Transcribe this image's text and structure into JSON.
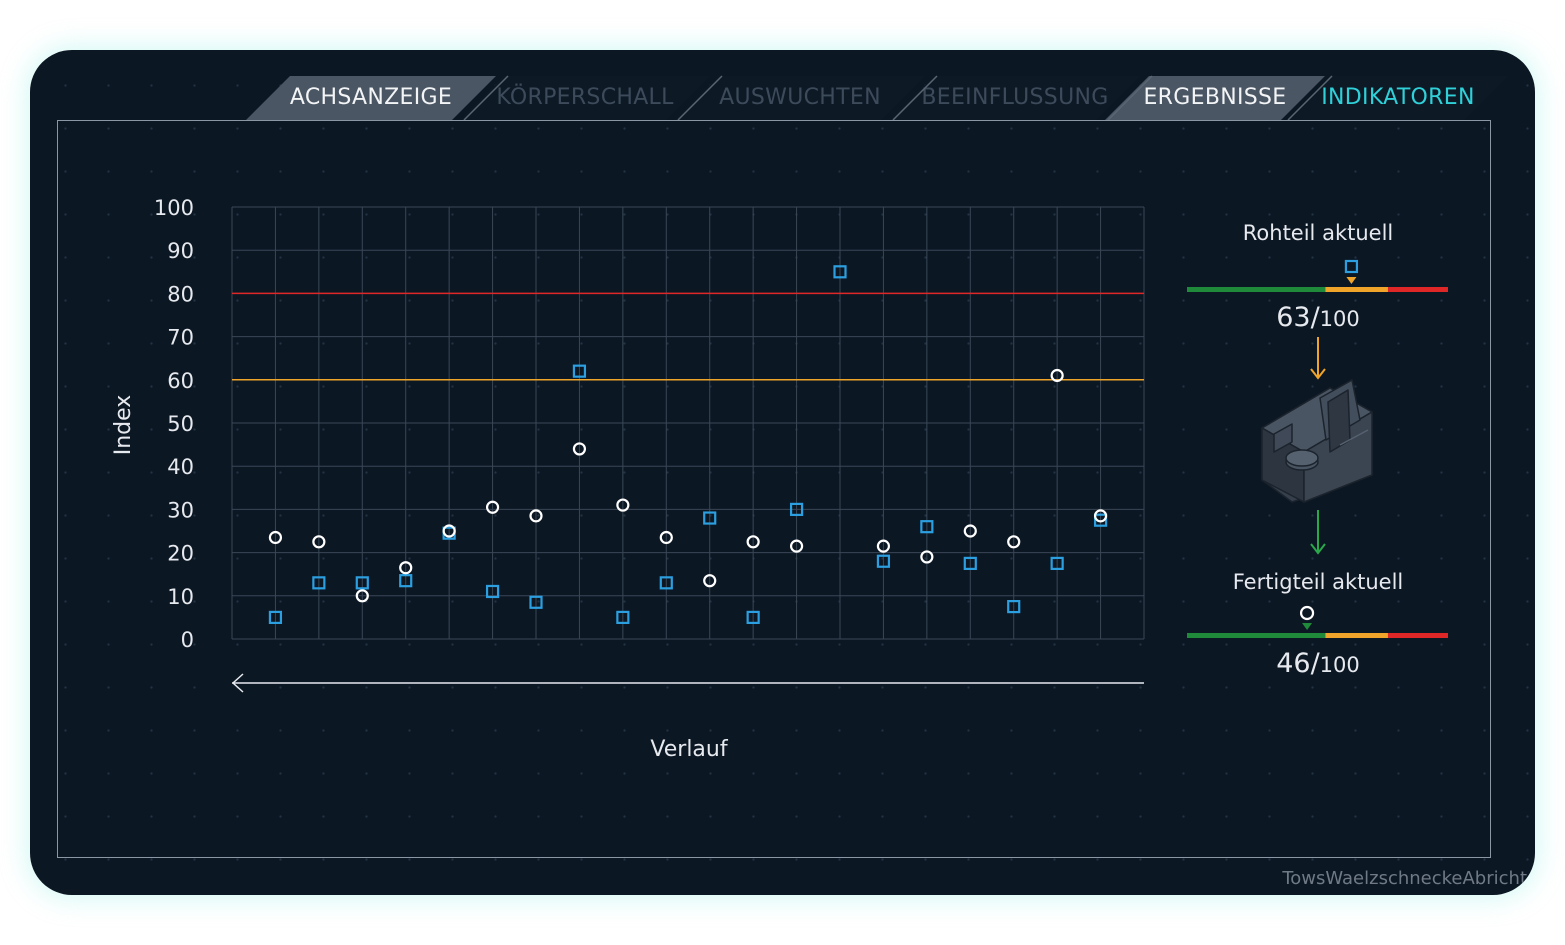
{
  "tabs": [
    {
      "label": "ACHSANZEIGE",
      "state": "active"
    },
    {
      "label": "KÖRPERSCHALL",
      "state": "dim"
    },
    {
      "label": "AUSWUCHTEN",
      "state": "dim"
    },
    {
      "label": "BEEINFLUSSUNG",
      "state": "dim"
    },
    {
      "label": "ERGEBNISSE",
      "state": "active"
    },
    {
      "label": "INDIKATOREN",
      "state": "selected"
    }
  ],
  "colors": {
    "rohteil": "#2b9fe0",
    "fertigteil": "#ffffff",
    "limit_red": "#e02727",
    "limit_orange": "#f0a52a",
    "good_green": "#1f8a3a",
    "accent": "#2fd0d8"
  },
  "chart_data": {
    "type": "scatter",
    "xlabel": "Verlauf",
    "ylabel": "Index",
    "ylim": [
      0,
      100
    ],
    "yticks": [
      0,
      10,
      20,
      30,
      40,
      50,
      60,
      70,
      80,
      90,
      100
    ],
    "x": [
      1,
      2,
      3,
      4,
      5,
      6,
      7,
      8,
      9,
      10,
      11,
      12,
      13,
      14,
      15,
      16,
      17,
      18,
      19,
      20
    ],
    "series": [
      {
        "marker": "square",
        "values": [
          5,
          13,
          13,
          13.5,
          24.5,
          11,
          8.5,
          62,
          5,
          13,
          28,
          5,
          30,
          85,
          18,
          26,
          17.5,
          7.5,
          17.5,
          27.5
        ]
      },
      {
        "marker": "circle",
        "values": [
          23.5,
          22.5,
          10,
          16.5,
          25,
          30.5,
          28.5,
          44,
          31,
          23.5,
          13.5,
          22.5,
          21.5,
          null,
          21.5,
          19,
          25,
          22.5,
          61,
          28.5
        ]
      }
    ],
    "thresholds": [
      {
        "value": 80,
        "color": "#e02727"
      },
      {
        "value": 60,
        "color": "#f0a52a"
      }
    ],
    "grid": true,
    "direction_arrow": "left"
  },
  "indicators": {
    "rohteil": {
      "title": "Rohteil aktuell",
      "value": 63,
      "max_label": "100",
      "value_label": "63/",
      "marker": "square"
    },
    "fertigteil": {
      "title": "Fertigteil aktuell",
      "value": 46,
      "max_label": "100",
      "value_label": "46/",
      "marker": "circle"
    },
    "scale_segments": [
      {
        "to": 53,
        "color": "#1f8a3a"
      },
      {
        "to": 77,
        "color": "#f0a52a"
      },
      {
        "to": 100,
        "color": "#e02727"
      }
    ]
  },
  "icons": {
    "part": "workpiece-3d-icon",
    "arrow_down_orange": "arrow-down-icon",
    "arrow_down_green": "arrow-down-icon"
  },
  "footer": {
    "watermark": "TowsWaelzschneckeAbricht"
  }
}
